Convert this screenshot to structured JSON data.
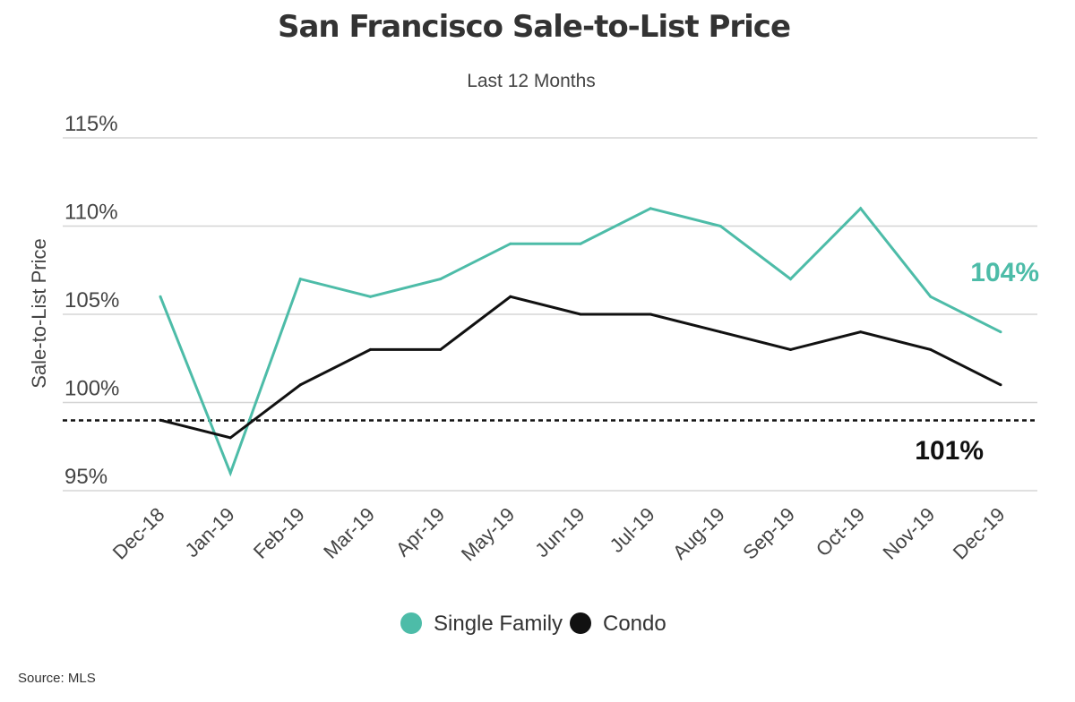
{
  "chart_data": {
    "type": "line",
    "title": "San Francisco Sale-to-List Price",
    "subtitle": "Last 12 Months",
    "xlabel": "",
    "ylabel": "Sale-to-List Price",
    "ylim": [
      95,
      115
    ],
    "y_ticks": [
      95,
      100,
      105,
      110,
      115
    ],
    "y_tick_labels": [
      "95%",
      "100%",
      "105%",
      "110%",
      "115%"
    ],
    "grid": true,
    "reference_line": {
      "value": 100,
      "style": "dashed",
      "color": "#111111"
    },
    "categories": [
      "Dec-18",
      "Jan-19",
      "Feb-19",
      "Mar-19",
      "Apr-19",
      "May-19",
      "Jun-19",
      "Jul-19",
      "Aug-19",
      "Sep-19",
      "Oct-19",
      "Nov-19",
      "Dec-19"
    ],
    "series": [
      {
        "name": "Single Family",
        "color": "#4dbca8",
        "values": [
          106,
          96,
          107,
          106,
          107,
          109,
          109,
          111,
          110,
          107,
          111,
          106,
          104
        ],
        "end_label": "104%"
      },
      {
        "name": "Condo",
        "color": "#111111",
        "values": [
          99,
          98,
          101,
          103,
          103,
          106,
          105,
          105,
          104,
          103,
          104,
          103,
          101
        ],
        "end_label": "101%"
      }
    ],
    "legend_position": "bottom-center",
    "source": "Source:  MLS"
  }
}
